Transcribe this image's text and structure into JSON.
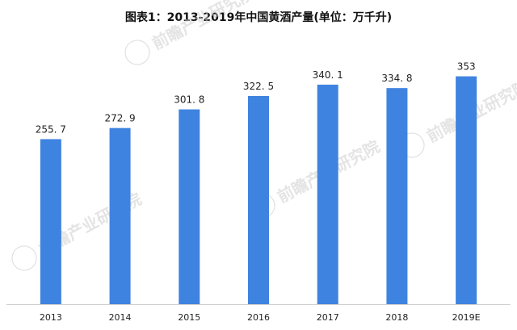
{
  "chart_data": {
    "type": "bar",
    "title": "图表1：2013-2019年中国黄酒产量(单位：万千升)",
    "categories": [
      "2013",
      "2014",
      "2015",
      "2016",
      "2017",
      "2018",
      "2019E"
    ],
    "values": [
      255.7,
      272.9,
      301.8,
      322.5,
      340.1,
      334.8,
      353
    ],
    "value_labels": [
      "255. 7",
      "272. 9",
      "301. 8",
      "322. 5",
      "340. 1",
      "334. 8",
      "353"
    ],
    "bar_color": "#3f83e0",
    "ylim": [
      0,
      380
    ],
    "grid": false,
    "legend": "none"
  },
  "watermark": {
    "text": "前瞻产业研究院",
    "icon": "qianzhan-logo-icon"
  }
}
